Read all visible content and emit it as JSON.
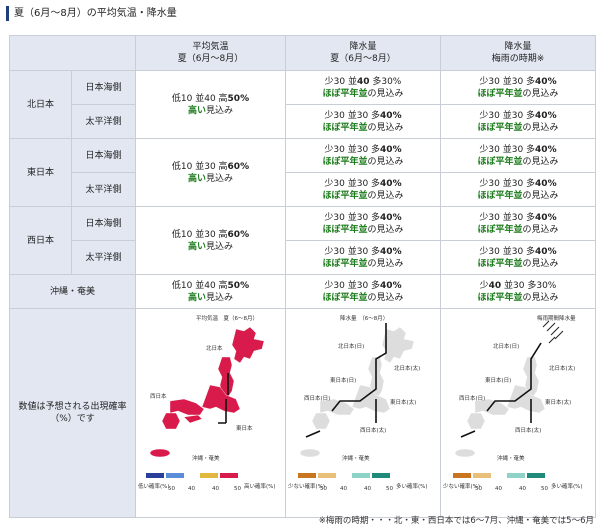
{
  "title": "夏（6月～8月）の平均気温・降水量",
  "headers": {
    "col1": [
      "平均気温",
      "夏（6月～8月）"
    ],
    "col2": [
      "降水量",
      "夏（6月～8月）"
    ],
    "col3": [
      "降水量",
      "梅雨の時期※"
    ]
  },
  "regions": {
    "north": "北日本",
    "east": "東日本",
    "west": "西日本",
    "okinawa": "沖縄・奄美",
    "japan_sea": "日本海側",
    "pacific": "太平洋側"
  },
  "temp": {
    "north": {
      "l": "低10 並40 高",
      "b": "50%",
      "hi": "高い",
      "tail": "見込み"
    },
    "east": {
      "l": "低10 並30 高",
      "b": "60%",
      "hi": "高い",
      "tail": "見込み"
    },
    "west": {
      "l": "低10 並30 高",
      "b": "60%",
      "hi": "高い",
      "tail": "見込み"
    },
    "okinawa": {
      "l": "低10 並40 高",
      "b": "50%",
      "hi": "高い",
      "tail": "見込み"
    }
  },
  "rain_summer": {
    "north_js": {
      "l1a": "少30 並",
      "l1b": "40",
      "l1c": " 多30%",
      "hi": "ほぼ平年並",
      "tail": "の見込み"
    },
    "north_pa": {
      "l1a": "少30 並30 多",
      "l1b": "40%",
      "l1c": "",
      "hi": "ほぼ平年並",
      "tail": "の見込み"
    },
    "east_js": {
      "l1a": "少30 並30 多",
      "l1b": "40%",
      "l1c": "",
      "hi": "ほぼ平年並",
      "tail": "の見込み"
    },
    "east_pa": {
      "l1a": "少30 並30 多",
      "l1b": "40%",
      "l1c": "",
      "hi": "ほぼ平年並",
      "tail": "の見込み"
    },
    "west_js": {
      "l1a": "少30 並30 多",
      "l1b": "40%",
      "l1c": "",
      "hi": "ほぼ平年並",
      "tail": "の見込み"
    },
    "west_pa": {
      "l1a": "少30 並30 多",
      "l1b": "40%",
      "l1c": "",
      "hi": "ほぼ平年並",
      "tail": "の見込み"
    },
    "okinawa": {
      "l1a": "少30 並30 多",
      "l1b": "40%",
      "l1c": "",
      "hi": "ほぼ平年並",
      "tail": "の見込み"
    }
  },
  "rain_tsuyu": {
    "north_js": {
      "l1a": "少30 並30 多",
      "l1b": "40%",
      "l1c": "",
      "hi": "ほぼ平年並",
      "tail": "の見込み"
    },
    "north_pa": {
      "l1a": "少30 並30 多",
      "l1b": "40%",
      "l1c": "",
      "hi": "ほぼ平年並",
      "tail": "の見込み"
    },
    "east_js": {
      "l1a": "少30 並30 多",
      "l1b": "40%",
      "l1c": "",
      "hi": "ほぼ平年並",
      "tail": "の見込み"
    },
    "east_pa": {
      "l1a": "少30 並30 多",
      "l1b": "40%",
      "l1c": "",
      "hi": "ほぼ平年並",
      "tail": "の見込み"
    },
    "west_js": {
      "l1a": "少30 並30 多",
      "l1b": "40%",
      "l1c": "",
      "hi": "ほぼ平年並",
      "tail": "の見込み"
    },
    "west_pa": {
      "l1a": "少30 並30 多",
      "l1b": "40%",
      "l1c": "",
      "hi": "ほぼ平年並",
      "tail": "の見込み"
    },
    "okinawa": {
      "l1a": "少",
      "l1b": "40",
      "l1c": " 並30 多30%",
      "hi": "ほぼ平年並",
      "tail": "の見込み"
    }
  },
  "maprow": {
    "label": "数値は予想される出現確率（%）です",
    "map1": {
      "title": "平均気温　夏（6～8月）",
      "north": "北日本",
      "west": "西日本",
      "east": "東日本",
      "okinawa": "沖縄・奄美",
      "low": "低い確率(%)",
      "high": "高い確率(%)",
      "ticks": [
        "50",
        "40",
        "40",
        "50"
      ],
      "sub": [
        "以上",
        "平年並の40",
        "以上"
      ]
    },
    "map2": {
      "title": "降水量　（6～8月）",
      "n_js": "北日本(日)",
      "n_pa": "北日本(太)",
      "e_js": "東日本(日)",
      "e_pa": "東日本(太)",
      "w_js": "西日本(日)",
      "w_pa": "西日本(太)",
      "okinawa": "沖縄・奄美",
      "low": "少ない確率(%)",
      "high": "多い確率(%)",
      "ticks": [
        "50",
        "40",
        "40",
        "50"
      ],
      "sub": [
        "以上",
        "平年並の40",
        "以上"
      ]
    },
    "map3": {
      "title": "梅雨期間降水量",
      "n_js": "北日本(日)",
      "n_pa": "北日本(太)",
      "e_js": "東日本(日)",
      "e_pa": "東日本(太)",
      "w_js": "西日本(日)",
      "w_pa": "西日本(太)",
      "okinawa": "沖縄・奄美",
      "low": "少ない確率(%)",
      "high": "多い確率(%)",
      "ticks": [
        "50",
        "40",
        "40",
        "50"
      ],
      "sub": [
        "以上",
        "平年並の40",
        "以上"
      ]
    }
  },
  "note": "※梅雨の時期・・・北・東・西日本では6～7月、沖縄・奄美では5～6月",
  "colors": {
    "hot": "#d81b4a",
    "green": "#1a7a1a",
    "header": "#e2e7f1",
    "rainy": "#1f8a7a",
    "dry": "#c9741f"
  }
}
